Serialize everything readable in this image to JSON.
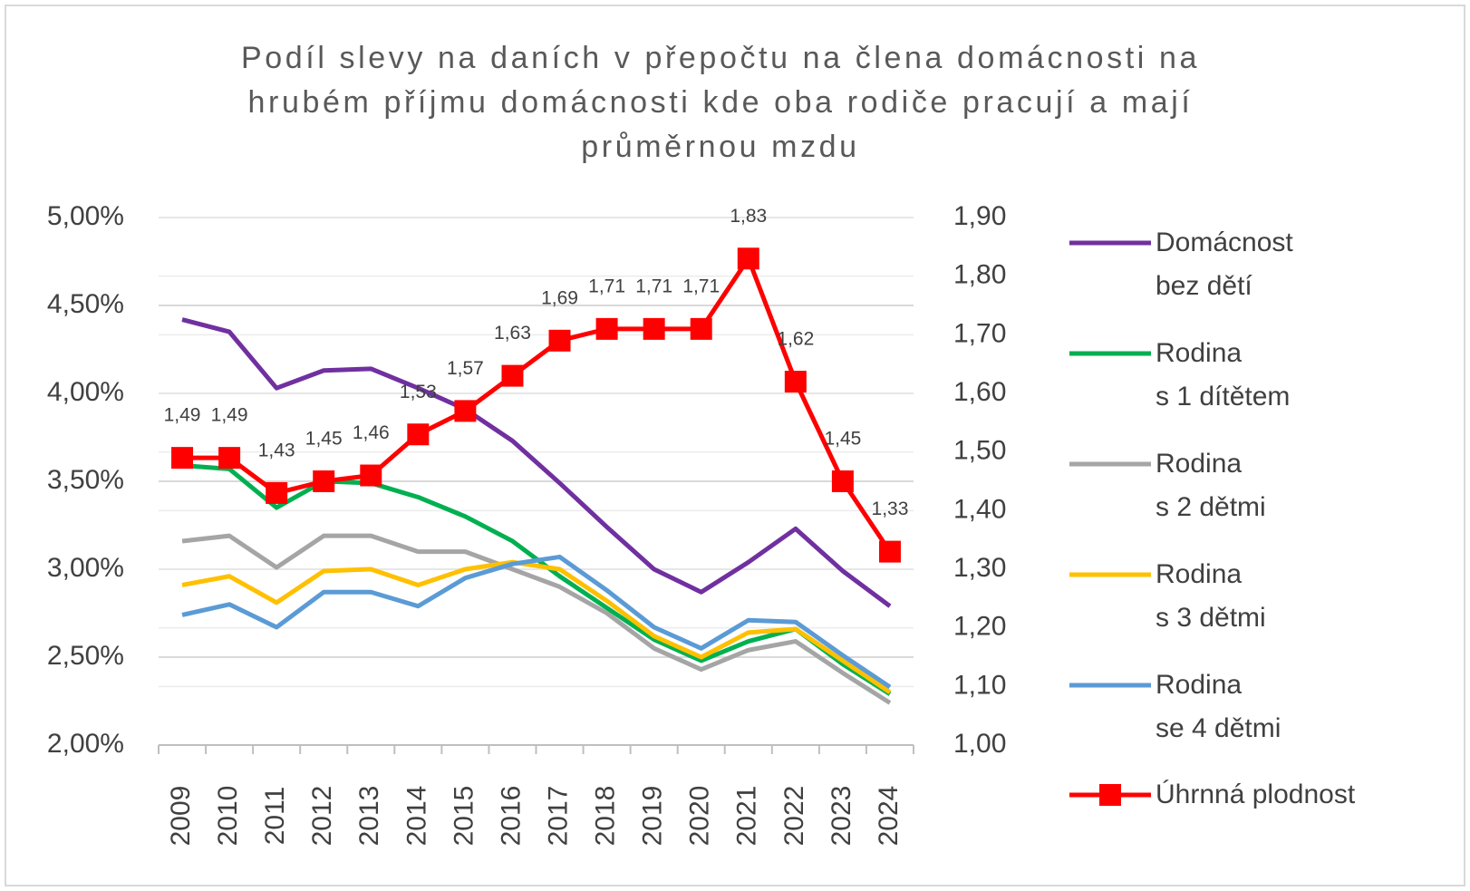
{
  "chart_data": {
    "type": "line",
    "title": "Podíl slevy na daních v přepočtu na člena domácnosti na\nhrubém příjmu domácnosti kde oba rodiče pracují a mají\nprůměrnou mzdu",
    "categories": [
      "2009",
      "2010",
      "2011",
      "2012",
      "2013",
      "2014",
      "2015",
      "2016",
      "2017",
      "2018",
      "2019",
      "2020",
      "2021",
      "2022",
      "2023",
      "2024"
    ],
    "ylim": [
      2,
      5
    ],
    "yticks": [
      {
        "value": 2,
        "label": "2,00%"
      },
      {
        "value": 2.5,
        "label": "2,50%"
      },
      {
        "value": 3,
        "label": "3,00%"
      },
      {
        "value": 3.5,
        "label": "3,50%"
      },
      {
        "value": 4,
        "label": "4,00%"
      },
      {
        "value": 4.5,
        "label": "4,50%"
      },
      {
        "value": 5,
        "label": "5,00%"
      }
    ],
    "y2lim": [
      1,
      1.9
    ],
    "y2ticks": [
      {
        "value": 1,
        "label": "1,00"
      },
      {
        "value": 1.1,
        "label": "1,10"
      },
      {
        "value": 1.2,
        "label": "1,20"
      },
      {
        "value": 1.3,
        "label": "1,30"
      },
      {
        "value": 1.4,
        "label": "1,40"
      },
      {
        "value": 1.5,
        "label": "1,50"
      },
      {
        "value": 1.6,
        "label": "1,60"
      },
      {
        "value": 1.7,
        "label": "1,70"
      },
      {
        "value": 1.8,
        "label": "1,80"
      },
      {
        "value": 1.9,
        "label": "1,90"
      }
    ],
    "grid": true,
    "legend": "right",
    "series": [
      {
        "name": "Domácnost\n bez dětí",
        "color": "#7030a0",
        "values": [
          4.42,
          4.35,
          4.03,
          4.13,
          4.14,
          4.03,
          3.91,
          3.73,
          3.49,
          3.24,
          3.0,
          2.87,
          3.04,
          3.23,
          2.99,
          2.79
        ]
      },
      {
        "name": "Rodina\ns 1 dítětem",
        "color": "#00b050",
        "values": [
          3.59,
          3.57,
          3.35,
          3.5,
          3.49,
          3.41,
          3.3,
          3.16,
          2.96,
          2.78,
          2.6,
          2.48,
          2.59,
          2.66,
          2.46,
          2.29
        ]
      },
      {
        "name": "Rodina\ns 2 dětmi",
        "color": "#a5a5a5",
        "values": [
          3.16,
          3.19,
          3.01,
          3.19,
          3.19,
          3.1,
          3.1,
          3.0,
          2.9,
          2.75,
          2.55,
          2.43,
          2.54,
          2.59,
          2.41,
          2.24
        ]
      },
      {
        "name": "Rodina\ns 3 dětmi",
        "color": "#ffc000",
        "values": [
          2.91,
          2.96,
          2.81,
          2.99,
          3.0,
          2.91,
          3.0,
          3.04,
          3.0,
          2.82,
          2.62,
          2.5,
          2.64,
          2.66,
          2.48,
          2.3
        ]
      },
      {
        "name": "Rodina\nse 4 dětmi",
        "color": "#5b9bd5",
        "values": [
          2.74,
          2.8,
          2.67,
          2.87,
          2.87,
          2.79,
          2.95,
          3.03,
          3.07,
          2.88,
          2.67,
          2.55,
          2.71,
          2.7,
          2.51,
          2.33
        ]
      },
      {
        "name": "Úhrnná plodnost",
        "color": "#ff0000",
        "axis": "y2",
        "marker": "square",
        "values": [
          1.49,
          1.49,
          1.43,
          1.45,
          1.46,
          1.53,
          1.57,
          1.63,
          1.69,
          1.71,
          1.71,
          1.71,
          1.83,
          1.62,
          1.45,
          1.33
        ],
        "value_labels": [
          "1,49",
          "1,49",
          "1,43",
          "1,45",
          "1,46",
          "1,53",
          "1,57",
          "1,63",
          "1,69",
          "1,71",
          "1,71",
          "1,71",
          "1,83",
          "1,62",
          "1,45",
          "1,33"
        ]
      }
    ]
  }
}
